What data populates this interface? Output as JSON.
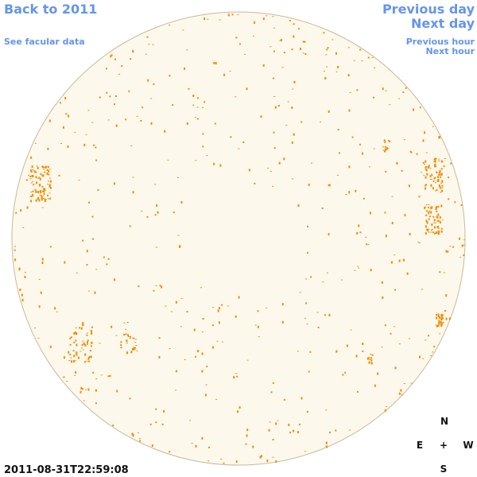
{
  "links": {
    "back": "Back to 2011",
    "facular": "See facular data",
    "previous_day": "Previous day",
    "next_day": "Next day",
    "previous_hour": "Previous hour",
    "next_hour": "Next hour"
  },
  "timestamp": "2011-08-31T22:59:08",
  "compass": {
    "north": "N",
    "east": "E",
    "center": "+",
    "west": "W",
    "south": "S"
  }
}
